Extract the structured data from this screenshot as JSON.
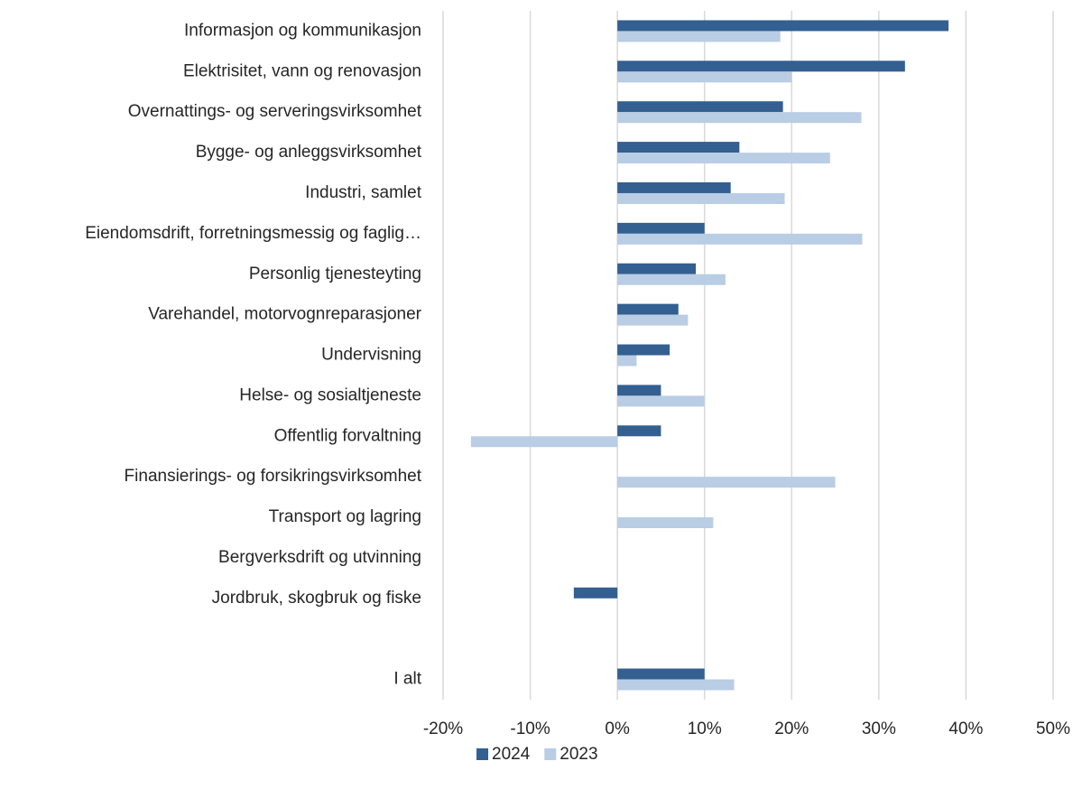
{
  "chart_data": {
    "type": "hbar",
    "categories": [
      "Informasjon og kommunikasjon",
      "Elektrisitet, vann og renovasjon",
      "Overnattings- og serveringsvirksomhet",
      "Bygge- og anleggsvirksomhet",
      "Industri, samlet",
      "Eiendomsdrift, forretningsmessig og faglig…",
      "Personlig tjenesteyting",
      "Varehandel, motorvognreparasjoner",
      "Undervisning",
      "Helse- og sosialtjeneste",
      "Offentlig forvaltning",
      "Finansierings- og forsikringsvirksomhet",
      "Transport og lagring",
      "Bergverksdrift og utvinning",
      "Jordbruk, skogbruk og fiske",
      null,
      "I alt"
    ],
    "series": [
      {
        "name": "2024",
        "color": "#335f91",
        "values": [
          38,
          33,
          19,
          14,
          13,
          10,
          9,
          7,
          6,
          5,
          5,
          0,
          0,
          0,
          -5,
          null,
          10
        ]
      },
      {
        "name": "2023",
        "color": "#b9cde5",
        "values": [
          18.7,
          20,
          28,
          24.4,
          19.2,
          28.1,
          12.4,
          8.1,
          2.2,
          10,
          -16.8,
          25,
          11,
          0,
          0,
          null,
          13.4
        ]
      }
    ],
    "xlim": [
      -20,
      50
    ],
    "xticks": [
      {
        "value": -20,
        "label": "-20%"
      },
      {
        "value": -10,
        "label": "-10%"
      },
      {
        "value": 0,
        "label": "0%"
      },
      {
        "value": 10,
        "label": "10%"
      },
      {
        "value": 20,
        "label": "20%"
      },
      {
        "value": 30,
        "label": "30%"
      },
      {
        "value": 40,
        "label": "40%"
      },
      {
        "value": 50,
        "label": "50%"
      }
    ],
    "grid": true,
    "legend": "bottom"
  }
}
